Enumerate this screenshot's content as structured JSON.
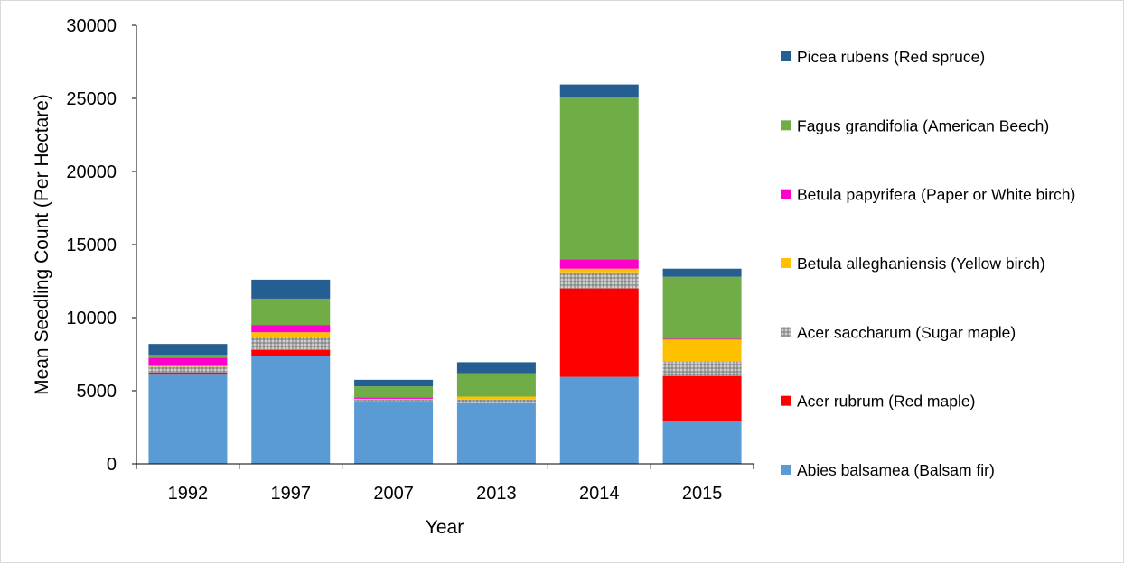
{
  "chart_data": {
    "type": "bar",
    "stacked": true,
    "xlabel": "Year",
    "ylabel": "Mean Seedling Count (Per Hectare)",
    "ylim": [
      0,
      30000
    ],
    "yticks": [
      0,
      5000,
      10000,
      15000,
      20000,
      25000,
      30000
    ],
    "grid": false,
    "legend_position": "right",
    "categories": [
      "1992",
      "1997",
      "2007",
      "2013",
      "2014",
      "2015"
    ],
    "series": [
      {
        "name": "Abies balsamea (Balsam fir)",
        "color": "#5b9bd5",
        "pattern": "solid",
        "values": [
          6100,
          7350,
          4300,
          4150,
          5950,
          2900
        ]
      },
      {
        "name": "Acer rubrum (Red maple)",
        "color": "#ff0000",
        "pattern": "solid",
        "values": [
          150,
          450,
          0,
          0,
          6050,
          3100
        ]
      },
      {
        "name": "Acer saccharum (Sugar maple)",
        "color": "#a5a5a5",
        "pattern": "dotted",
        "values": [
          400,
          850,
          100,
          250,
          1100,
          1000
        ]
      },
      {
        "name": "Betula alleghaniensis (Yellow birch)",
        "color": "#ffc000",
        "pattern": "solid",
        "values": [
          50,
          350,
          50,
          200,
          250,
          1500
        ]
      },
      {
        "name": "Betula papyrifera (Paper or White birch)",
        "color": "#ff00cc",
        "pattern": "solid",
        "values": [
          550,
          500,
          100,
          0,
          650,
          50
        ]
      },
      {
        "name": "Fagus grandifolia (American Beech)",
        "color": "#70ad47",
        "pattern": "solid",
        "values": [
          200,
          1800,
          750,
          1600,
          11050,
          4250
        ]
      },
      {
        "name": "Picea rubens (Red spruce)",
        "color": "#255e91",
        "pattern": "solid",
        "values": [
          750,
          1300,
          450,
          750,
          900,
          550
        ]
      }
    ]
  }
}
